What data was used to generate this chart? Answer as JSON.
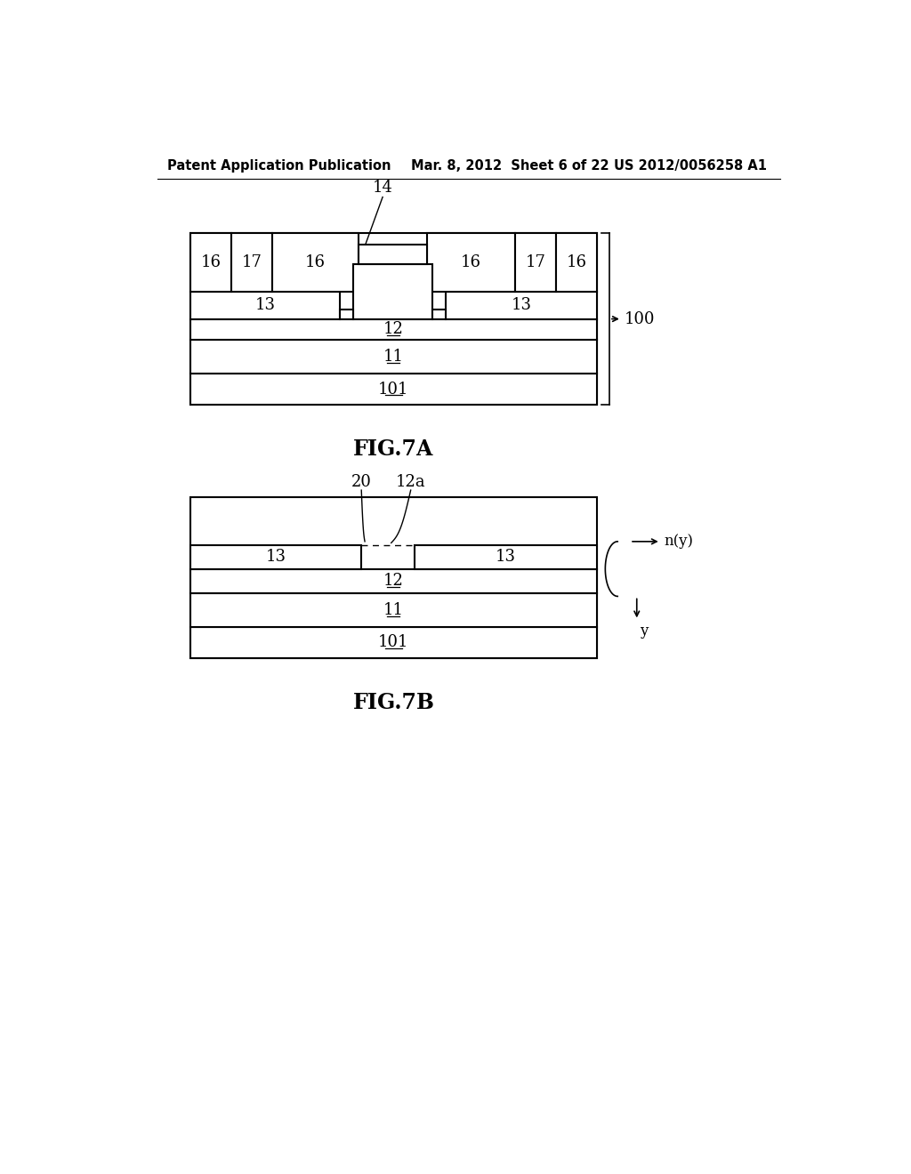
{
  "bg_color": "#ffffff",
  "header_left": "Patent Application Publication",
  "header_center": "Mar. 8, 2012  Sheet 6 of 22",
  "header_right": "US 2012/0056258 A1",
  "fig7a_caption": "FIG.7A",
  "fig7b_caption": "FIG.7B"
}
